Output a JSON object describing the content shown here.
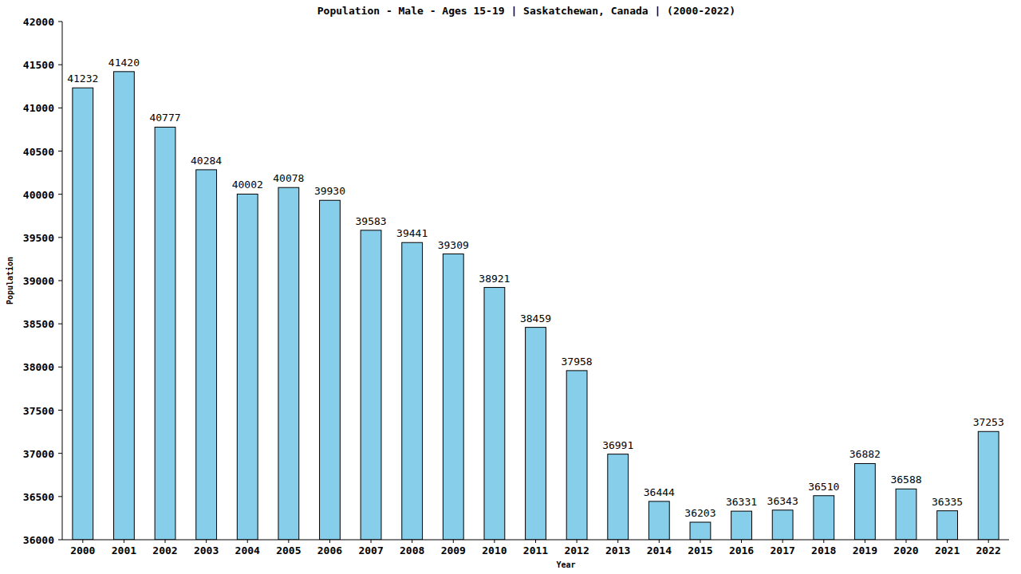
{
  "chart_data": {
    "type": "bar",
    "title": "Population - Male - Ages 15-19 | Saskatchewan, Canada |  (2000-2022)",
    "x_label": "Year",
    "y_label": "Population",
    "categories": [
      "2000",
      "2001",
      "2002",
      "2003",
      "2004",
      "2005",
      "2006",
      "2007",
      "2008",
      "2009",
      "2010",
      "2011",
      "2012",
      "2013",
      "2014",
      "2015",
      "2016",
      "2017",
      "2018",
      "2019",
      "2020",
      "2021",
      "2022"
    ],
    "values": [
      41232,
      41420,
      40777,
      40284,
      40002,
      40078,
      39930,
      39583,
      39441,
      39309,
      38921,
      38459,
      37958,
      36991,
      36444,
      36203,
      36331,
      36343,
      36510,
      36882,
      36588,
      36335,
      37253
    ],
    "color": "#87ceeb",
    "ylim": [
      36000,
      42000
    ],
    "yticks": [
      36000,
      36500,
      37000,
      37500,
      38000,
      38500,
      39000,
      39500,
      40000,
      40500,
      41000,
      41500,
      42000
    ],
    "grid": false,
    "data_labels": true
  }
}
